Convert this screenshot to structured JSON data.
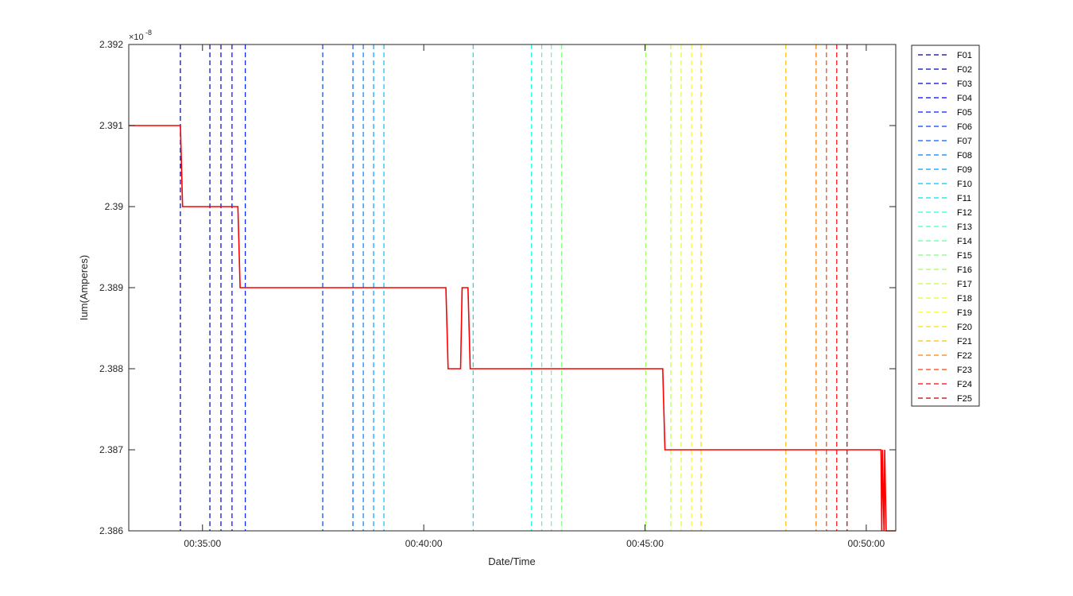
{
  "chart_data": {
    "type": "line",
    "xlabel": "Date/Time",
    "ylabel": "Ium(Amperes)",
    "y_exponent": "-8",
    "y_exponent_prefix": "×10",
    "xlim": [
      "00:33:20",
      "00:50:40"
    ],
    "ylim": [
      2.386,
      2.392
    ],
    "x_ticks": [
      "00:35:00",
      "00:40:00",
      "00:45:00",
      "00:50:00"
    ],
    "y_ticks": [
      "2.386",
      "2.387",
      "2.388",
      "2.389",
      "2.39",
      "2.391",
      "2.392"
    ],
    "y_tick_values": [
      2.386,
      2.387,
      2.388,
      2.389,
      2.39,
      2.391,
      2.392
    ],
    "grid": false,
    "legend_position": "outside-right-top",
    "current_series": {
      "color": "#ff0000",
      "points": [
        [
          "00:33:20",
          2.391
        ],
        [
          "00:34:30",
          2.391
        ],
        [
          "00:34:33",
          2.39
        ],
        [
          "00:35:48",
          2.39
        ],
        [
          "00:35:51",
          2.389
        ],
        [
          "00:40:30",
          2.389
        ],
        [
          "00:40:33",
          2.388
        ],
        [
          "00:40:50",
          2.388
        ],
        [
          "00:40:52",
          2.389
        ],
        [
          "00:41:00",
          2.389
        ],
        [
          "00:41:03",
          2.388
        ],
        [
          "00:45:24",
          2.388
        ],
        [
          "00:45:27",
          2.387
        ],
        [
          "00:50:20",
          2.387
        ],
        [
          "00:50:21",
          2.386
        ],
        [
          "00:50:22",
          2.387
        ],
        [
          "00:50:24",
          2.386
        ],
        [
          "00:50:25",
          2.387
        ],
        [
          "00:50:27",
          2.386
        ],
        [
          "00:50:40",
          2.386
        ]
      ]
    },
    "markers": [
      {
        "name": "F01",
        "x": "00:34:30",
        "color": "#00008f"
      },
      {
        "name": "F02",
        "x": "00:35:10",
        "color": "#0000b3"
      },
      {
        "name": "F03",
        "x": "00:35:25",
        "color": "#0000d9"
      },
      {
        "name": "F04",
        "x": "00:35:40",
        "color": "#0000ff"
      },
      {
        "name": "F05",
        "x": "00:35:58",
        "color": "#0020ff"
      },
      {
        "name": "F06",
        "x": "00:37:43",
        "color": "#0040ff"
      },
      {
        "name": "F07",
        "x": "00:38:24",
        "color": "#0060ff"
      },
      {
        "name": "F08",
        "x": "00:38:38",
        "color": "#0080ff"
      },
      {
        "name": "F09",
        "x": "00:38:52",
        "color": "#00a0ff"
      },
      {
        "name": "F10",
        "x": "00:39:06",
        "color": "#00c0ff"
      },
      {
        "name": "F11",
        "x": "00:41:07",
        "color": "#00e0ff"
      },
      {
        "name": "F12",
        "x": "00:42:26",
        "color": "#20ffdf"
      },
      {
        "name": "F13",
        "x": "00:42:40",
        "color": "#40ffbf"
      },
      {
        "name": "F14",
        "x": "00:42:53",
        "color": "#60ff9f"
      },
      {
        "name": "F15",
        "x": "00:43:07",
        "color": "#80ff80"
      },
      {
        "name": "F16",
        "x": "00:45:01",
        "color": "#9fff60"
      },
      {
        "name": "F17",
        "x": "00:45:35",
        "color": "#bfff40"
      },
      {
        "name": "F18",
        "x": "00:45:49",
        "color": "#dfff20"
      },
      {
        "name": "F19",
        "x": "00:46:03",
        "color": "#ffff00"
      },
      {
        "name": "F20",
        "x": "00:46:16",
        "color": "#ffdf00"
      },
      {
        "name": "F21",
        "x": "00:48:11",
        "color": "#ffbf00"
      },
      {
        "name": "F22",
        "x": "00:48:52",
        "color": "#ff8000"
      },
      {
        "name": "F23",
        "x": "00:49:06",
        "color": "#ff4000"
      },
      {
        "name": "F24",
        "x": "00:49:20",
        "color": "#ff0000"
      },
      {
        "name": "F25",
        "x": "00:49:34",
        "color": "#b30000"
      }
    ]
  }
}
